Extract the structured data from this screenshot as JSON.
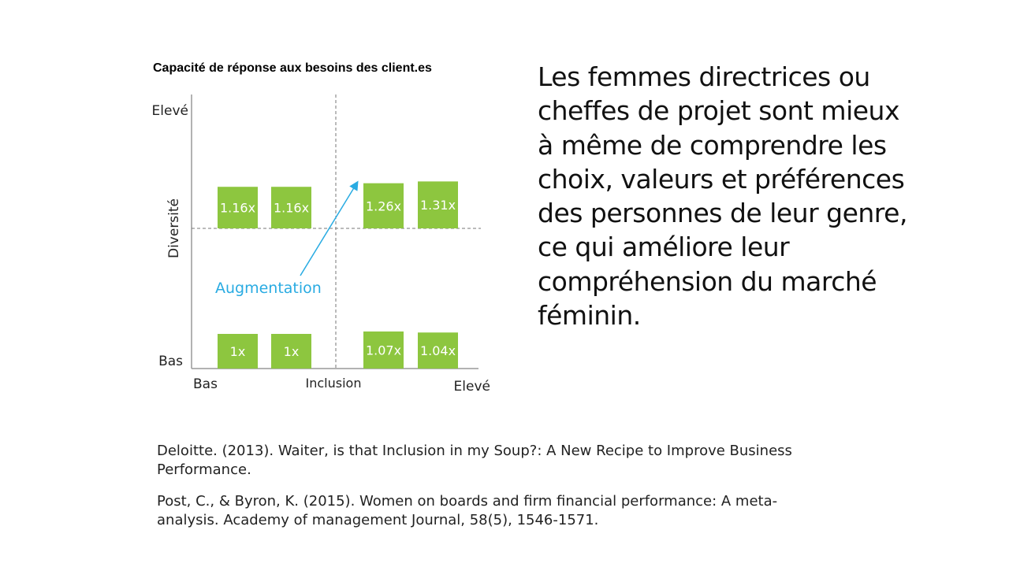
{
  "chart_data": {
    "type": "bar",
    "title": "Capacité de réponse aux besoins des client.es",
    "xlabel": "Inclusion",
    "ylabel": "Diversité",
    "x_ticks": [
      "Bas",
      "Elevé"
    ],
    "y_ticks": [
      "Elevé",
      "Bas"
    ],
    "annotation": "Augmentation",
    "grid": false,
    "legend": "none",
    "groups": [
      {
        "values": [
          1.16,
          1.16,
          1.26,
          1.31
        ],
        "labels": [
          "1.16x",
          "1.16x",
          "1.26x",
          "1.31x"
        ]
      },
      {
        "values": [
          1,
          1,
          1.07,
          1.04
        ],
        "labels": [
          "1x",
          "1x",
          "1.07x",
          "1.04x"
        ]
      }
    ]
  },
  "colors": {
    "bar": "#8dc63f",
    "annotation": "#29abe2",
    "axis": "#999999",
    "divider": "#777777"
  },
  "main_text": "Les femmes directrices ou cheffes de projet sont mieux à même de comprendre les choix, valeurs et préférences des personnes de leur genre, ce qui améliore leur compréhension du marché féminin.",
  "references": [
    "Deloitte. (2013). Waiter, is that Inclusion in my Soup?: A New Recipe to Improve Business Performance.",
    "Post, C., & Byron, K. (2015). Women on boards and firm financial performance: A meta-analysis. Academy of management Journal, 58(5), 1546-1571."
  ]
}
